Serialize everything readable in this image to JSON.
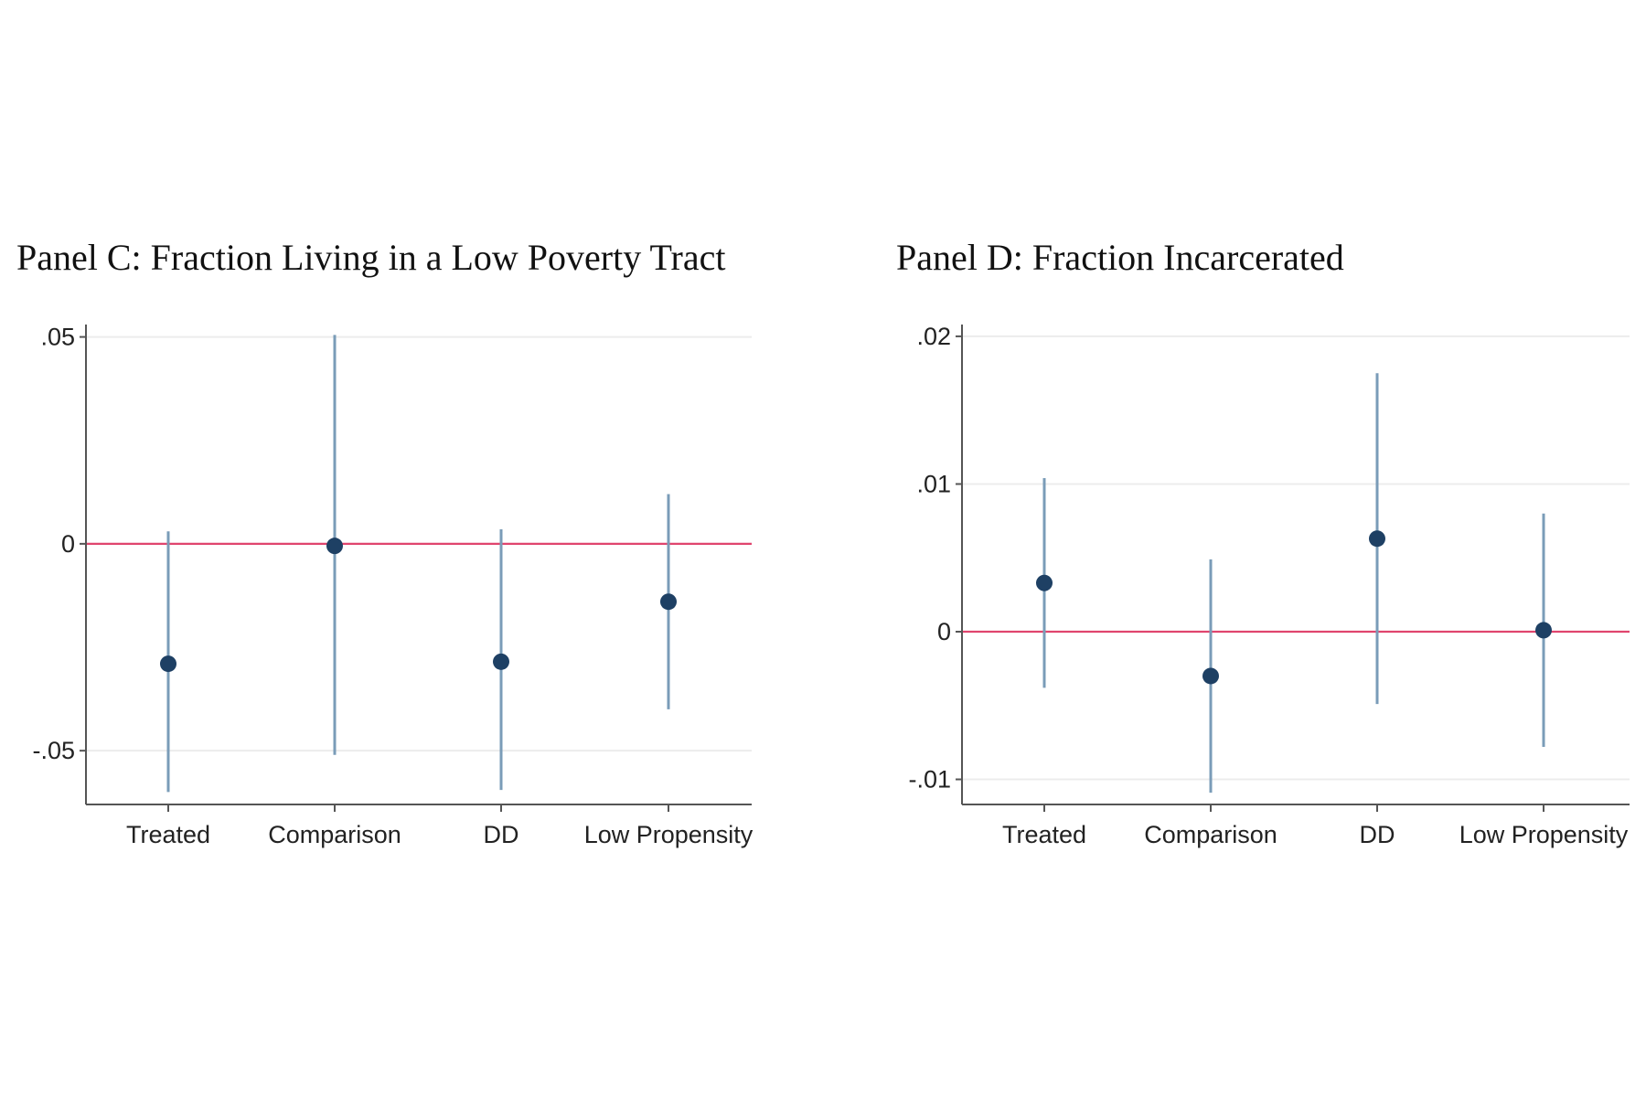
{
  "chart_data": [
    {
      "type": "scatter",
      "title": "Panel C: Fraction Living in a Low Poverty Tract",
      "xlabel": "",
      "ylabel": "",
      "categories": [
        "Treated",
        "Comparison",
        "DD",
        "Low Propensity"
      ],
      "series": [
        {
          "estimates": [
            -0.029,
            -0.0005,
            -0.0285,
            -0.014
          ],
          "ci_low": [
            -0.06,
            -0.051,
            -0.0595,
            -0.04
          ],
          "ci_high": [
            0.003,
            0.0505,
            0.0035,
            0.012
          ]
        }
      ],
      "yticks": [
        -0.05,
        0,
        0.05
      ],
      "ytick_labels": [
        "-.05",
        "0",
        ".05"
      ],
      "ylim": [
        -0.063,
        0.053
      ],
      "reference_line": 0,
      "grid": true,
      "colors": {
        "point": "#1e4064",
        "ci": "#7a9cb8",
        "reference": "#e0456e",
        "grid": "#ececec",
        "axis": "#555555"
      }
    },
    {
      "type": "scatter",
      "title": "Panel D: Fraction Incarcerated",
      "xlabel": "",
      "ylabel": "",
      "categories": [
        "Treated",
        "Comparison",
        "DD",
        "Low Propensity"
      ],
      "series": [
        {
          "estimates": [
            0.0033,
            -0.003,
            0.0063,
            0.0001
          ],
          "ci_low": [
            -0.0038,
            -0.0109,
            -0.0049,
            -0.0078
          ],
          "ci_high": [
            0.0104,
            0.0049,
            0.0175,
            0.008
          ]
        }
      ],
      "yticks": [
        -0.01,
        0,
        0.01,
        0.02
      ],
      "ytick_labels": [
        "-.01",
        "0",
        ".01",
        ".02"
      ],
      "ylim": [
        -0.0117,
        0.0208
      ],
      "reference_line": 0,
      "grid": true,
      "colors": {
        "point": "#1e4064",
        "ci": "#7a9cb8",
        "reference": "#e0456e",
        "grid": "#ececec",
        "axis": "#555555"
      }
    }
  ]
}
